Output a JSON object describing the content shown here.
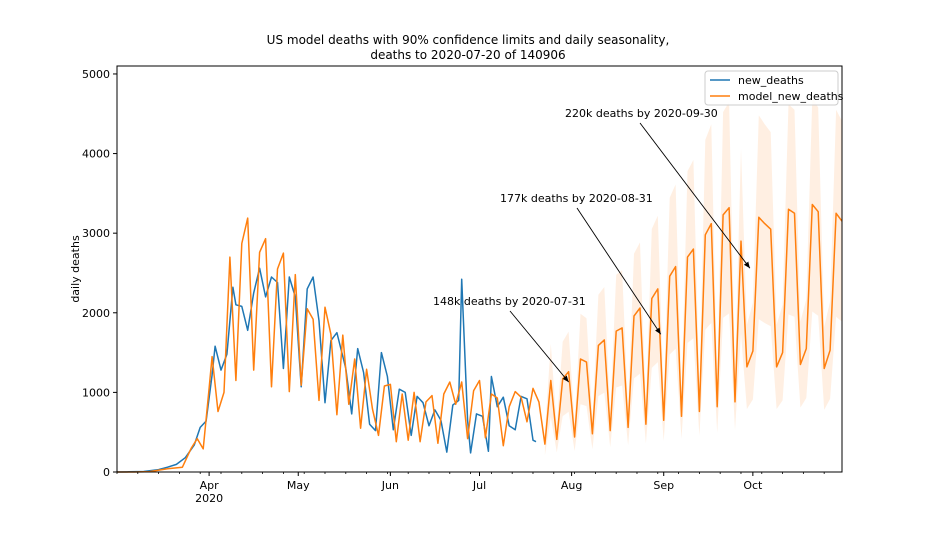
{
  "chart_data": {
    "type": "line",
    "title": "US model deaths with 90% confidence limits and daily seasonality,",
    "subtitle": "deaths to 2020-07-20 of 140906",
    "xlabel": "",
    "ylabel": "daily deaths",
    "ylim": [
      0,
      5100
    ],
    "xlim": [
      "2020-03-01",
      "2020-10-31"
    ],
    "y_ticks": [
      0,
      1000,
      2000,
      3000,
      4000,
      5000
    ],
    "x_ticks": [
      {
        "date": "2020-04-01",
        "label": "Apr",
        "sublabel": "2020"
      },
      {
        "date": "2020-05-01",
        "label": "May"
      },
      {
        "date": "2020-06-01",
        "label": "Jun"
      },
      {
        "date": "2020-07-01",
        "label": "Jul"
      },
      {
        "date": "2020-08-01",
        "label": "Aug"
      },
      {
        "date": "2020-09-01",
        "label": "Sep"
      },
      {
        "date": "2020-10-01",
        "label": "Oct"
      }
    ],
    "legend_position": "top-right",
    "legend": [
      "new_deaths",
      "model_new_deaths"
    ],
    "series": [
      {
        "name": "new_deaths",
        "color": "#1f77b4",
        "x": [
          "2020-03-01",
          "2020-03-05",
          "2020-03-10",
          "2020-03-15",
          "2020-03-18",
          "2020-03-21",
          "2020-03-24",
          "2020-03-27",
          "2020-03-29",
          "2020-03-31",
          "2020-04-02",
          "2020-04-03",
          "2020-04-05",
          "2020-04-07",
          "2020-04-09",
          "2020-04-10",
          "2020-04-12",
          "2020-04-14",
          "2020-04-16",
          "2020-04-18",
          "2020-04-20",
          "2020-04-22",
          "2020-04-24",
          "2020-04-26",
          "2020-04-28",
          "2020-04-30",
          "2020-05-02",
          "2020-05-04",
          "2020-05-06",
          "2020-05-08",
          "2020-05-10",
          "2020-05-12",
          "2020-05-14",
          "2020-05-17",
          "2020-05-19",
          "2020-05-21",
          "2020-05-23",
          "2020-05-25",
          "2020-05-27",
          "2020-05-29",
          "2020-05-31",
          "2020-06-02",
          "2020-06-04",
          "2020-06-06",
          "2020-06-08",
          "2020-06-10",
          "2020-06-12",
          "2020-06-14",
          "2020-06-16",
          "2020-06-18",
          "2020-06-20",
          "2020-06-22",
          "2020-06-24",
          "2020-06-25",
          "2020-06-27",
          "2020-06-28",
          "2020-06-30",
          "2020-07-02",
          "2020-07-04",
          "2020-07-05",
          "2020-07-07",
          "2020-07-09",
          "2020-07-11",
          "2020-07-13",
          "2020-07-15",
          "2020-07-17",
          "2020-07-19",
          "2020-07-20"
        ],
        "values": [
          0,
          3,
          6,
          30,
          60,
          95,
          180,
          340,
          560,
          640,
          1220,
          1580,
          1280,
          1480,
          2320,
          2100,
          2080,
          1780,
          2250,
          2560,
          2200,
          2450,
          2380,
          1300,
          2450,
          2200,
          1070,
          2300,
          2450,
          1900,
          870,
          1650,
          1750,
          1300,
          730,
          1550,
          1250,
          600,
          520,
          1500,
          1200,
          530,
          1040,
          1000,
          460,
          950,
          870,
          580,
          780,
          650,
          250,
          840,
          900,
          2420,
          650,
          240,
          730,
          700,
          260,
          1200,
          820,
          940,
          580,
          530,
          950,
          920,
          400,
          380
        ]
      },
      {
        "name": "model_new_deaths",
        "color": "#ff7f0e",
        "x": [
          "2020-03-01",
          "2020-03-07",
          "2020-03-12",
          "2020-03-18",
          "2020-03-23",
          "2020-03-26",
          "2020-03-28",
          "2020-03-30",
          "2020-04-01",
          "2020-04-02",
          "2020-04-04",
          "2020-04-06",
          "2020-04-08",
          "2020-04-10",
          "2020-04-12",
          "2020-04-14",
          "2020-04-16",
          "2020-04-18",
          "2020-04-20",
          "2020-04-22",
          "2020-04-24",
          "2020-04-26",
          "2020-04-28",
          "2020-04-30",
          "2020-05-02",
          "2020-05-04",
          "2020-05-06",
          "2020-05-08",
          "2020-05-10",
          "2020-05-12",
          "2020-05-14",
          "2020-05-16",
          "2020-05-18",
          "2020-05-20",
          "2020-05-22",
          "2020-05-24",
          "2020-05-26",
          "2020-05-28",
          "2020-05-30",
          "2020-06-01",
          "2020-06-03",
          "2020-06-05",
          "2020-06-07",
          "2020-06-09",
          "2020-06-11",
          "2020-06-13",
          "2020-06-15",
          "2020-06-17",
          "2020-06-19",
          "2020-06-21",
          "2020-06-23",
          "2020-06-25",
          "2020-06-27",
          "2020-06-29",
          "2020-07-01",
          "2020-07-03",
          "2020-07-05",
          "2020-07-07",
          "2020-07-09",
          "2020-07-11",
          "2020-07-13",
          "2020-07-15",
          "2020-07-17",
          "2020-07-19",
          "2020-07-21",
          "2020-07-23",
          "2020-07-25",
          "2020-07-27",
          "2020-07-29",
          "2020-07-31",
          "2020-08-02",
          "2020-08-04",
          "2020-08-06",
          "2020-08-08",
          "2020-08-10",
          "2020-08-12",
          "2020-08-14",
          "2020-08-16",
          "2020-08-18",
          "2020-08-20",
          "2020-08-22",
          "2020-08-24",
          "2020-08-26",
          "2020-08-28",
          "2020-08-30",
          "2020-09-01",
          "2020-09-03",
          "2020-09-05",
          "2020-09-07",
          "2020-09-09",
          "2020-09-11",
          "2020-09-13",
          "2020-09-15",
          "2020-09-17",
          "2020-09-19",
          "2020-09-21",
          "2020-09-23",
          "2020-09-25",
          "2020-09-27",
          "2020-09-29",
          "2020-10-01",
          "2020-10-03",
          "2020-10-05",
          "2020-10-07",
          "2020-10-09",
          "2020-10-11",
          "2020-10-13",
          "2020-10-15",
          "2020-10-17",
          "2020-10-19",
          "2020-10-21",
          "2020-10-23",
          "2020-10-25",
          "2020-10-27",
          "2020-10-29",
          "2020-10-31"
        ],
        "values": [
          0,
          0,
          5,
          40,
          60,
          300,
          420,
          290,
          1050,
          1450,
          760,
          1000,
          2700,
          1150,
          2870,
          3190,
          1280,
          2760,
          2930,
          1070,
          2550,
          2750,
          1010,
          2480,
          1090,
          2050,
          1920,
          900,
          2070,
          1730,
          720,
          1720,
          850,
          1420,
          550,
          1290,
          790,
          460,
          1080,
          1100,
          380,
          980,
          400,
          1000,
          380,
          880,
          960,
          360,
          980,
          1130,
          850,
          1130,
          420,
          1020,
          1150,
          430,
          980,
          930,
          330,
          820,
          1010,
          940,
          630,
          1050,
          880,
          350,
          1150,
          410,
          1170,
          1260,
          440,
          1420,
          1380,
          480,
          1590,
          1660,
          520,
          1770,
          1810,
          560,
          1960,
          2060,
          600,
          2180,
          2300,
          650,
          2460,
          2580,
          700,
          2700,
          2800,
          760,
          2980,
          3120,
          820,
          3230,
          3320,
          880,
          2900,
          1320,
          1520,
          3200,
          3120,
          3050,
          1320,
          1500,
          3300,
          3250,
          1350,
          1550,
          3360,
          3270,
          1300,
          1530,
          3250,
          3150
        ]
      }
    ],
    "confidence_band": {
      "name": "90% confidence limits",
      "color": "#ff7f0e",
      "x": [
        "2020-07-23",
        "2020-08-31",
        "2020-09-30",
        "2020-10-31"
      ],
      "lower_ratio": 0.6,
      "upper_ratio": 1.4
    },
    "annotations": [
      {
        "text": "148k deaths by 2020-07-31",
        "point": {
          "x": "2020-07-31",
          "y": 1130
        }
      },
      {
        "text": "177k deaths by 2020-08-31",
        "point": {
          "x": "2020-08-31",
          "y": 1730
        }
      },
      {
        "text": "220k deaths by 2020-09-30",
        "point": {
          "x": "2020-09-30",
          "y": 2560
        }
      }
    ]
  }
}
